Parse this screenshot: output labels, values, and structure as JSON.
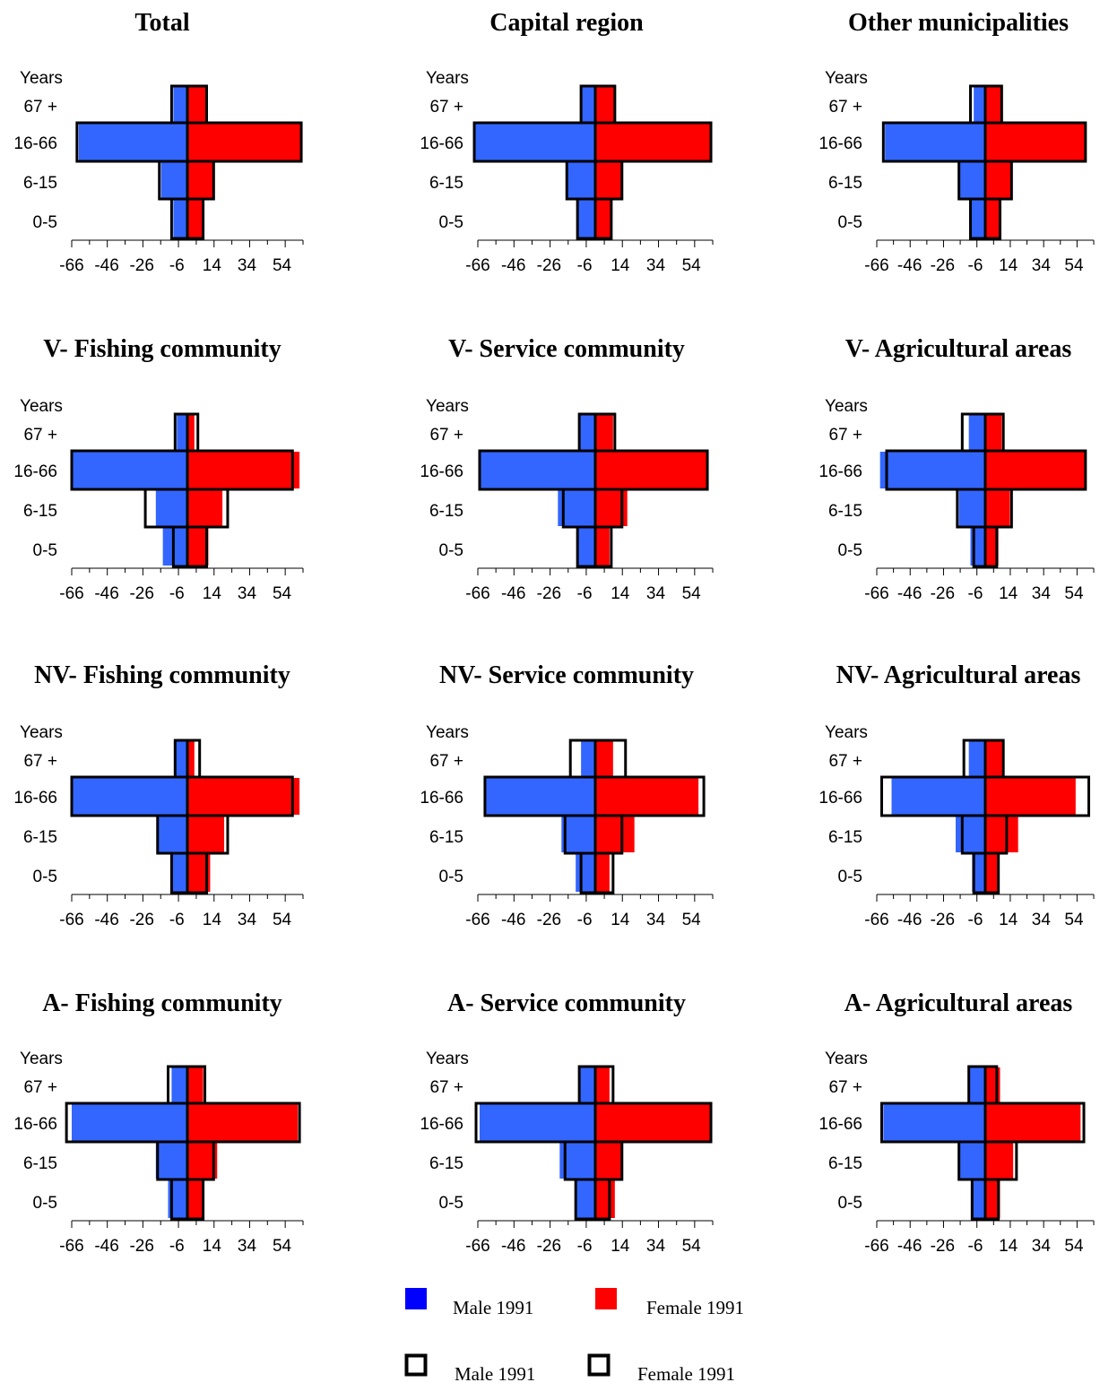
{
  "chart_data": [
    {
      "type": "bar",
      "title": "Total",
      "ylabel": "Years",
      "categories": [
        "67 +",
        "16-66",
        "6-15",
        "0-5"
      ],
      "xticks": [
        "-66",
        "-46",
        "-26",
        "-6",
        "14",
        "34",
        "54"
      ],
      "xlim": [
        -66,
        66
      ],
      "series": [
        {
          "name": "Male 1991",
          "style": "filled",
          "color": "#3366ff",
          "values": [
            -8,
            -62,
            -15,
            -8
          ]
        },
        {
          "name": "Female 1991",
          "style": "filled",
          "color": "#ff0000",
          "values": [
            11,
            65,
            15,
            9
          ]
        },
        {
          "name": "Male 1991",
          "style": "outline",
          "values": [
            -9,
            -63,
            -16,
            -9
          ]
        },
        {
          "name": "Female 1991",
          "style": "outline",
          "values": [
            11,
            65,
            15,
            9
          ]
        }
      ]
    },
    {
      "type": "bar",
      "title": "Capital region",
      "ylabel": "Years",
      "categories": [
        "67 +",
        "16-66",
        "6-15",
        "0-5"
      ],
      "xticks": [
        "-66",
        "-46",
        "-26",
        "-6",
        "14",
        "34",
        "54"
      ],
      "xlim": [
        -66,
        66
      ],
      "series": [
        {
          "name": "Male 1991",
          "style": "filled",
          "color": "#3366ff",
          "values": [
            -8,
            -68,
            -16,
            -10
          ]
        },
        {
          "name": "Female 1991",
          "style": "filled",
          "color": "#ff0000",
          "values": [
            11,
            65,
            15,
            9
          ]
        },
        {
          "name": "Male 1991",
          "style": "outline",
          "values": [
            -8,
            -68,
            -16,
            -10
          ]
        },
        {
          "name": "Female 1991",
          "style": "outline",
          "values": [
            11,
            65,
            15,
            9
          ]
        }
      ]
    },
    {
      "type": "bar",
      "title": "Other municipalities",
      "ylabel": "Years",
      "categories": [
        "67 +",
        "16-66",
        "6-15",
        "0-5"
      ],
      "xticks": [
        "-66",
        "-46",
        "-26",
        "-6",
        "14",
        "34",
        "54"
      ],
      "xlim": [
        -66,
        66
      ],
      "series": [
        {
          "name": "Male 1991",
          "style": "filled",
          "color": "#3366ff",
          "values": [
            -7,
            -61,
            -16,
            -9
          ]
        },
        {
          "name": "Female 1991",
          "style": "filled",
          "color": "#ff0000",
          "values": [
            10,
            61,
            16,
            9
          ]
        },
        {
          "name": "Male 1991",
          "style": "outline",
          "values": [
            -9,
            -62,
            -16,
            -9
          ]
        },
        {
          "name": "Female 1991",
          "style": "outline",
          "values": [
            10,
            61,
            16,
            9
          ]
        }
      ]
    },
    {
      "type": "bar",
      "title": "V- Fishing community",
      "ylabel": "Years",
      "categories": [
        "67 +",
        "16-66",
        "6-15",
        "0-5"
      ],
      "xticks": [
        "-66",
        "-46",
        "-26",
        "-6",
        "14",
        "34",
        "54"
      ],
      "xlim": [
        -66,
        66
      ],
      "series": [
        {
          "name": "Male 1991",
          "style": "filled",
          "color": "#3366ff",
          "values": [
            -6,
            -66,
            -18,
            -14
          ]
        },
        {
          "name": "Female 1991",
          "style": "filled",
          "color": "#ff0000",
          "values": [
            4,
            64,
            20,
            12
          ]
        },
        {
          "name": "Male 1991",
          "style": "outline",
          "values": [
            -7,
            -66,
            -24,
            -8
          ]
        },
        {
          "name": "Female 1991",
          "style": "outline",
          "values": [
            6,
            60,
            23,
            11
          ]
        }
      ]
    },
    {
      "type": "bar",
      "title": "V- Service community",
      "ylabel": "Years",
      "categories": [
        "67 +",
        "16-66",
        "6-15",
        "0-5"
      ],
      "xticks": [
        "-66",
        "-46",
        "-26",
        "-6",
        "14",
        "34",
        "54"
      ],
      "xlim": [
        -66,
        66
      ],
      "series": [
        {
          "name": "Male 1991",
          "style": "filled",
          "color": "#3366ff",
          "values": [
            -9,
            -65,
            -21,
            -10
          ]
        },
        {
          "name": "Female 1991",
          "style": "filled",
          "color": "#ff0000",
          "values": [
            10,
            63,
            18,
            8
          ]
        },
        {
          "name": "Male 1991",
          "style": "outline",
          "values": [
            -9,
            -65,
            -18,
            -10
          ]
        },
        {
          "name": "Female 1991",
          "style": "outline",
          "values": [
            11,
            63,
            15,
            9
          ]
        }
      ]
    },
    {
      "type": "bar",
      "title": "V- Agricultural areas",
      "ylabel": "Years",
      "categories": [
        "67 +",
        "16-66",
        "6-15",
        "0-5"
      ],
      "xticks": [
        "-66",
        "-46",
        "-26",
        "-6",
        "14",
        "34",
        "54"
      ],
      "xlim": [
        -66,
        66
      ],
      "series": [
        {
          "name": "Male 1991",
          "style": "filled",
          "color": "#3366ff",
          "values": [
            -10,
            -64,
            -16,
            -9
          ]
        },
        {
          "name": "Female 1991",
          "style": "filled",
          "color": "#ff0000",
          "values": [
            10,
            61,
            15,
            8
          ]
        },
        {
          "name": "Male 1991",
          "style": "outline",
          "values": [
            -14,
            -60,
            -17,
            -7
          ]
        },
        {
          "name": "Female 1991",
          "style": "outline",
          "values": [
            11,
            61,
            16,
            7
          ]
        }
      ]
    },
    {
      "type": "bar",
      "title": "NV- Fishing community",
      "ylabel": "Years",
      "categories": [
        "67 +",
        "16-66",
        "6-15",
        "0-5"
      ],
      "xticks": [
        "-66",
        "-46",
        "-26",
        "-6",
        "14",
        "34",
        "54"
      ],
      "xlim": [
        -66,
        66
      ],
      "series": [
        {
          "name": "Male 1991",
          "style": "filled",
          "color": "#3366ff",
          "values": [
            -7,
            -66,
            -17,
            -9
          ]
        },
        {
          "name": "Female 1991",
          "style": "filled",
          "color": "#ff0000",
          "values": [
            4,
            64,
            21,
            13
          ]
        },
        {
          "name": "Male 1991",
          "style": "outline",
          "values": [
            -7,
            -66,
            -17,
            -9
          ]
        },
        {
          "name": "Female 1991",
          "style": "outline",
          "values": [
            7,
            60,
            23,
            11
          ]
        }
      ]
    },
    {
      "type": "bar",
      "title": "NV- Service community",
      "ylabel": "Years",
      "categories": [
        "67 +",
        "16-66",
        "6-15",
        "0-5"
      ],
      "xticks": [
        "-66",
        "-46",
        "-26",
        "-6",
        "14",
        "34",
        "54"
      ],
      "xlim": [
        -66,
        66
      ],
      "series": [
        {
          "name": "Male 1991",
          "style": "filled",
          "color": "#3366ff",
          "values": [
            -8,
            -62,
            -19,
            -11
          ]
        },
        {
          "name": "Female 1991",
          "style": "filled",
          "color": "#ff0000",
          "values": [
            10,
            58,
            22,
            8
          ]
        },
        {
          "name": "Male 1991",
          "style": "outline",
          "values": [
            -14,
            -62,
            -17,
            -8
          ]
        },
        {
          "name": "Female 1991",
          "style": "outline",
          "values": [
            17,
            61,
            15,
            10
          ]
        }
      ]
    },
    {
      "type": "bar",
      "title": "NV- Agricultural areas",
      "ylabel": "Years",
      "categories": [
        "67 +",
        "16-66",
        "6-15",
        "0-5"
      ],
      "xticks": [
        "-66",
        "-46",
        "-26",
        "-6",
        "14",
        "34",
        "54"
      ],
      "xlim": [
        -66,
        66
      ],
      "series": [
        {
          "name": "Male 1991",
          "style": "filled",
          "color": "#3366ff",
          "values": [
            -10,
            -57,
            -18,
            -8
          ]
        },
        {
          "name": "Female 1991",
          "style": "filled",
          "color": "#ff0000",
          "values": [
            11,
            55,
            20,
            8
          ]
        },
        {
          "name": "Male 1991",
          "style": "outline",
          "values": [
            -13,
            -63,
            -14,
            -7
          ]
        },
        {
          "name": "Female 1991",
          "style": "outline",
          "values": [
            11,
            63,
            13,
            8
          ]
        }
      ]
    },
    {
      "type": "bar",
      "title": "A- Fishing community",
      "ylabel": "Years",
      "categories": [
        "67 +",
        "16-66",
        "6-15",
        "0-5"
      ],
      "xticks": [
        "-66",
        "-46",
        "-26",
        "-6",
        "14",
        "34",
        "54"
      ],
      "xlim": [
        -66,
        66
      ],
      "series": [
        {
          "name": "Male 1991",
          "style": "filled",
          "color": "#3366ff",
          "values": [
            -9,
            -66,
            -18,
            -11
          ]
        },
        {
          "name": "Female 1991",
          "style": "filled",
          "color": "#ff0000",
          "values": [
            9,
            63,
            17,
            9
          ]
        },
        {
          "name": "Male 1991",
          "style": "outline",
          "values": [
            -11,
            -69,
            -17,
            -9
          ]
        },
        {
          "name": "Female 1991",
          "style": "outline",
          "values": [
            10,
            64,
            15,
            9
          ]
        }
      ]
    },
    {
      "type": "bar",
      "title": "A- Service community",
      "ylabel": "Years",
      "categories": [
        "67 +",
        "16-66",
        "6-15",
        "0-5"
      ],
      "xticks": [
        "-66",
        "-46",
        "-26",
        "-6",
        "14",
        "34",
        "54"
      ],
      "xlim": [
        -66,
        66
      ],
      "series": [
        {
          "name": "Male 1991",
          "style": "filled",
          "color": "#3366ff",
          "values": [
            -9,
            -65,
            -20,
            -11
          ]
        },
        {
          "name": "Female 1991",
          "style": "filled",
          "color": "#ff0000",
          "values": [
            8,
            65,
            15,
            11
          ]
        },
        {
          "name": "Male 1991",
          "style": "outline",
          "values": [
            -9,
            -67,
            -17,
            -11
          ]
        },
        {
          "name": "Female 1991",
          "style": "outline",
          "values": [
            10,
            65,
            15,
            8
          ]
        }
      ]
    },
    {
      "type": "bar",
      "title": "A- Agricultural areas",
      "ylabel": "Years",
      "categories": [
        "67 +",
        "16-66",
        "6-15",
        "0-5"
      ],
      "xticks": [
        "-66",
        "-46",
        "-26",
        "-6",
        "14",
        "34",
        "54"
      ],
      "xlim": [
        -66,
        66
      ],
      "series": [
        {
          "name": "Male 1991",
          "style": "filled",
          "color": "#3366ff",
          "values": [
            -10,
            -62,
            -16,
            -8
          ]
        },
        {
          "name": "Female 1991",
          "style": "filled",
          "color": "#ff0000",
          "values": [
            9,
            58,
            17,
            9
          ]
        },
        {
          "name": "Male 1991",
          "style": "outline",
          "values": [
            -10,
            -63,
            -16,
            -8
          ]
        },
        {
          "name": "Female 1991",
          "style": "outline",
          "values": [
            7,
            60,
            19,
            8
          ]
        }
      ]
    }
  ],
  "legend": {
    "items": [
      {
        "label": "Male 1991",
        "style": "filled",
        "color": "#0000ff"
      },
      {
        "label": "Female 1991",
        "style": "filled",
        "color": "#ff0000"
      },
      {
        "label": "Male 1991",
        "style": "outline"
      },
      {
        "label": "Female 1991",
        "style": "outline"
      }
    ]
  }
}
